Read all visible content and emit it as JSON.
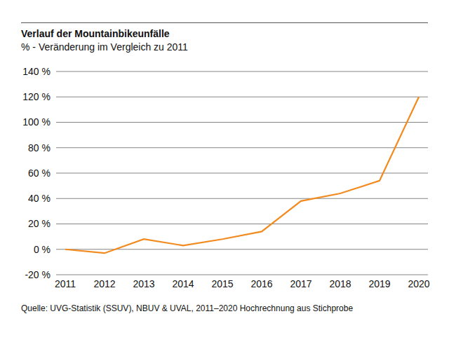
{
  "chart_data": {
    "type": "line",
    "title": "Verlauf der Mountainbikeunfälle",
    "subtitle": "% - Veränderung im Vergleich zu 2011",
    "source": "Quelle: UVG-Statistik (SSUV), NBUV & UVAL, 2011–2020 Hochrechnung aus Stichprobe",
    "categories": [
      "2011",
      "2012",
      "2013",
      "2014",
      "2015",
      "2016",
      "2017",
      "2018",
      "2019",
      "2020"
    ],
    "values": [
      0,
      -3,
      8,
      3,
      8,
      14,
      38,
      44,
      54,
      120
    ],
    "color": "#f28a1e",
    "ylim": [
      -20,
      140
    ],
    "yticks": [
      {
        "value": -20,
        "label": "-20 %"
      },
      {
        "value": 0,
        "label": "0 %"
      },
      {
        "value": 20,
        "label": "20 %"
      },
      {
        "value": 40,
        "label": "40 %"
      },
      {
        "value": 60,
        "label": "60 %"
      },
      {
        "value": 80,
        "label": "80 %"
      },
      {
        "value": 100,
        "label": "100 %"
      },
      {
        "value": 120,
        "label": "120 %"
      },
      {
        "value": 140,
        "label": "140 %"
      }
    ],
    "grid": true
  }
}
